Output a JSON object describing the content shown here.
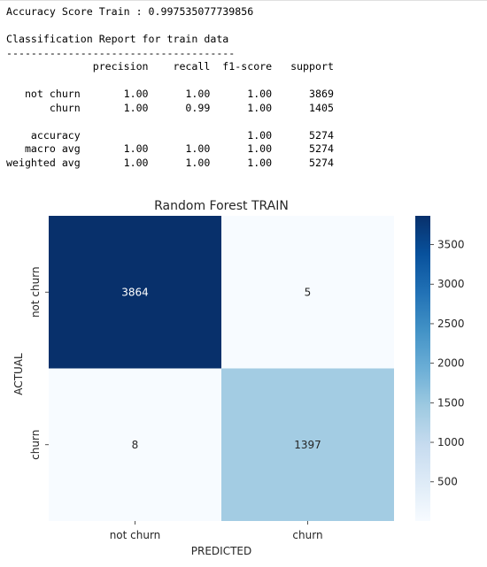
{
  "output_lines": [
    "Accuracy Score Train : 0.997535077739856",
    "",
    "Classification Report for train data",
    "-------------------------------------",
    "              precision    recall  f1-score   support",
    "",
    "   not churn       1.00      1.00      1.00      3869",
    "       churn       1.00      0.99      1.00      1405",
    "",
    "    accuracy                           1.00      5274",
    "   macro avg       1.00      1.00      1.00      5274",
    "weighted avg       1.00      1.00      1.00      5274"
  ],
  "chart_data": {
    "type": "heatmap",
    "title": "Random Forest TRAIN",
    "xlabel": "PREDICTED",
    "ylabel": "ACTUAL",
    "x_categories": [
      "not churn",
      "churn"
    ],
    "y_categories": [
      "not churn",
      "churn"
    ],
    "values": [
      [
        3864,
        5
      ],
      [
        8,
        1397
      ]
    ],
    "colormap": "Blues",
    "vmin": 5,
    "vmax": 3864,
    "colorbar_ticks": [
      500,
      1000,
      1500,
      2000,
      2500,
      3000,
      3500
    ],
    "grid": false
  }
}
